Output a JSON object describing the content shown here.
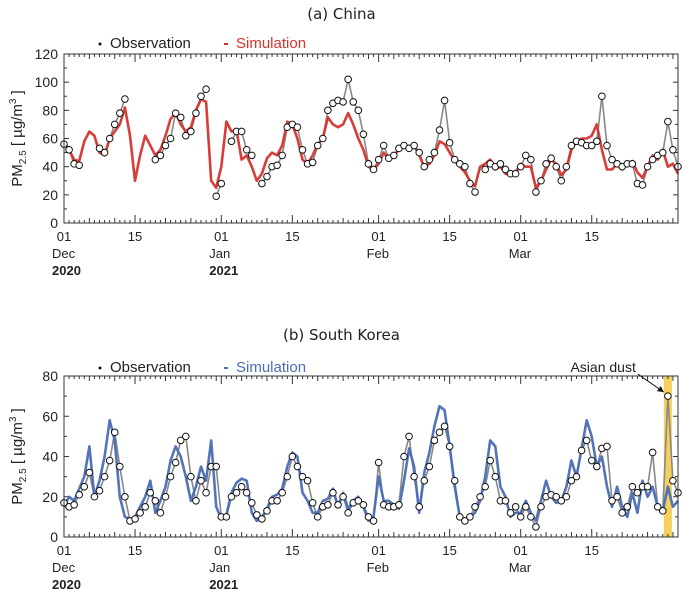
{
  "chart_data": [
    {
      "type": "line",
      "title": "(a) China",
      "ylabel": "PM2.5 [ µg/m3 ]",
      "ylabel_parts": {
        "main": "PM",
        "sub": "2.5",
        "units_open": " [ µg/m",
        "sup": "3",
        "units_close": " ]"
      },
      "ylim": [
        0,
        120
      ],
      "yticks": [
        "0",
        "10",
        "20",
        "30",
        "40",
        "50",
        "60",
        "70",
        "80",
        "90",
        "100",
        "110",
        "120"
      ],
      "ytick_labels": [
        "0",
        "20",
        "40",
        "60",
        "80",
        "100",
        "120"
      ],
      "xlim_days": [
        0,
        121
      ],
      "xticks": [
        {
          "day": 0,
          "label": "01",
          "month": "Dec",
          "year": "2020"
        },
        {
          "day": 14,
          "label": "15"
        },
        {
          "day": 31,
          "label": "01",
          "month": "Jan",
          "year": "2021"
        },
        {
          "day": 45,
          "label": "15"
        },
        {
          "day": 62,
          "label": "01",
          "month": "Feb"
        },
        {
          "day": 76,
          "label": "15"
        },
        {
          "day": 90,
          "label": "01",
          "month": "Mar"
        },
        {
          "day": 104,
          "label": "15"
        }
      ],
      "legend": {
        "placement": "top-center",
        "observation": "Observation",
        "simulation": "Simulation"
      },
      "series": [
        {
          "name": "Observation",
          "color": "#888888",
          "marker": "open-circle",
          "values": [
            56,
            52,
            42,
            41,
            null,
            null,
            null,
            53,
            50,
            60,
            70,
            78,
            88,
            null,
            null,
            null,
            null,
            null,
            45,
            48,
            55,
            60,
            78,
            75,
            62,
            65,
            78,
            90,
            95,
            null,
            19,
            28,
            null,
            58,
            65,
            65,
            52,
            48,
            null,
            28,
            33,
            40,
            41,
            48,
            68,
            70,
            68,
            52,
            42,
            43,
            55,
            60,
            80,
            85,
            87,
            86,
            102,
            86,
            80,
            63,
            42,
            38,
            45,
            55,
            46,
            48,
            53,
            55,
            53,
            55,
            50,
            40,
            45,
            50,
            66,
            87,
            57,
            45,
            42,
            40,
            28,
            22,
            null,
            38,
            42,
            40,
            42,
            38,
            35,
            35,
            40,
            48,
            45,
            22,
            30,
            42,
            46,
            40,
            30,
            40,
            55,
            58,
            57,
            55,
            55,
            58,
            90,
            55,
            45,
            42,
            40,
            42,
            42,
            28,
            27,
            40,
            45,
            48,
            50,
            72,
            52,
            40
          ]
        },
        {
          "name": "Simulation",
          "color": "#d6332d",
          "marker": "none",
          "values": [
            58,
            52,
            45,
            44,
            58,
            65,
            62,
            50,
            48,
            60,
            65,
            70,
            82,
            62,
            30,
            48,
            62,
            55,
            48,
            52,
            62,
            74,
            78,
            70,
            65,
            68,
            80,
            88,
            86,
            30,
            25,
            40,
            72,
            65,
            66,
            45,
            48,
            40,
            30,
            35,
            46,
            50,
            48,
            55,
            72,
            70,
            60,
            45,
            42,
            48,
            56,
            60,
            75,
            70,
            68,
            70,
            78,
            70,
            60,
            52,
            40,
            38,
            42,
            50,
            45,
            48,
            52,
            56,
            52,
            55,
            48,
            40,
            42,
            48,
            58,
            56,
            50,
            44,
            40,
            36,
            30,
            26,
            40,
            42,
            45,
            38,
            40,
            35,
            34,
            36,
            42,
            40,
            40,
            25,
            30,
            38,
            45,
            42,
            34,
            38,
            52,
            58,
            60,
            60,
            62,
            70,
            52,
            38,
            38,
            42,
            38,
            42,
            44,
            36,
            32,
            40,
            48,
            45,
            52,
            40,
            42,
            35
          ]
        }
      ]
    },
    {
      "type": "line",
      "title": "(b) South Korea",
      "ylabel": "PM2.5 [ µg/m3 ]",
      "ylabel_parts": {
        "main": "PM",
        "sub": "2.5",
        "units_open": " [ µg/m",
        "sup": "3",
        "units_close": " ]"
      },
      "ylim": [
        0,
        80
      ],
      "ytick_labels": [
        "0",
        "20",
        "40",
        "60",
        "80"
      ],
      "xlim_days": [
        0,
        121
      ],
      "xticks": [
        {
          "day": 0,
          "label": "01",
          "month": "Dec",
          "year": "2020"
        },
        {
          "day": 14,
          "label": "15"
        },
        {
          "day": 31,
          "label": "01",
          "month": "Jan",
          "year": "2021"
        },
        {
          "day": 45,
          "label": "15"
        },
        {
          "day": 62,
          "label": "01",
          "month": "Feb"
        },
        {
          "day": 76,
          "label": "15"
        },
        {
          "day": 90,
          "label": "01",
          "month": "Mar"
        },
        {
          "day": 104,
          "label": "15"
        }
      ],
      "legend": {
        "placement": "top-center",
        "observation": "Observation",
        "simulation": "Simulation"
      },
      "annotation": {
        "text": "Asian dust",
        "day": 119,
        "value": 70,
        "highlight_days": [
          118.2,
          119.8
        ],
        "highlight_color": "#f5c842"
      },
      "series": [
        {
          "name": "Observation",
          "color": "#888888",
          "marker": "open-circle",
          "values": [
            17,
            15,
            16,
            21,
            25,
            32,
            20,
            23,
            30,
            38,
            52,
            35,
            20,
            8,
            9,
            12,
            15,
            22,
            18,
            12,
            20,
            30,
            37,
            48,
            50,
            30,
            18,
            28,
            22,
            35,
            35,
            10,
            10,
            20,
            22,
            25,
            22,
            17,
            11,
            9,
            13,
            18,
            18,
            22,
            30,
            40,
            35,
            30,
            28,
            17,
            10,
            15,
            16,
            22,
            16,
            20,
            12,
            17,
            18,
            16,
            10,
            8,
            37,
            16,
            15,
            15,
            16,
            40,
            50,
            30,
            15,
            28,
            35,
            48,
            52,
            55,
            45,
            28,
            10,
            8,
            10,
            15,
            20,
            25,
            38,
            30,
            18,
            18,
            12,
            15,
            10,
            15,
            10,
            5,
            15,
            20,
            21,
            20,
            18,
            20,
            28,
            30,
            43,
            48,
            38,
            35,
            44,
            45,
            18,
            20,
            12,
            15,
            25,
            22,
            25,
            25,
            42,
            15,
            13,
            70,
            28,
            22
          ]
        },
        {
          "name": "Simulation",
          "color": "#4a6db5",
          "marker": "none",
          "values": [
            15,
            20,
            18,
            24,
            30,
            45,
            20,
            28,
            40,
            58,
            48,
            20,
            10,
            9,
            10,
            15,
            20,
            28,
            12,
            18,
            25,
            38,
            45,
            40,
            30,
            18,
            25,
            35,
            28,
            48,
            15,
            9,
            11,
            22,
            27,
            29,
            28,
            12,
            8,
            10,
            14,
            20,
            21,
            24,
            35,
            42,
            40,
            22,
            18,
            12,
            12,
            18,
            19,
            24,
            15,
            22,
            14,
            18,
            20,
            15,
            8,
            10,
            30,
            18,
            18,
            16,
            14,
            28,
            44,
            35,
            12,
            32,
            42,
            55,
            65,
            63,
            45,
            25,
            10,
            8,
            10,
            12,
            18,
            30,
            48,
            45,
            25,
            20,
            10,
            12,
            12,
            18,
            12,
            8,
            18,
            28,
            20,
            17,
            18,
            25,
            38,
            30,
            44,
            58,
            50,
            35,
            40,
            25,
            15,
            25,
            15,
            10,
            22,
            12,
            28,
            20,
            25,
            15,
            13,
            25,
            15,
            18
          ]
        }
      ]
    }
  ]
}
